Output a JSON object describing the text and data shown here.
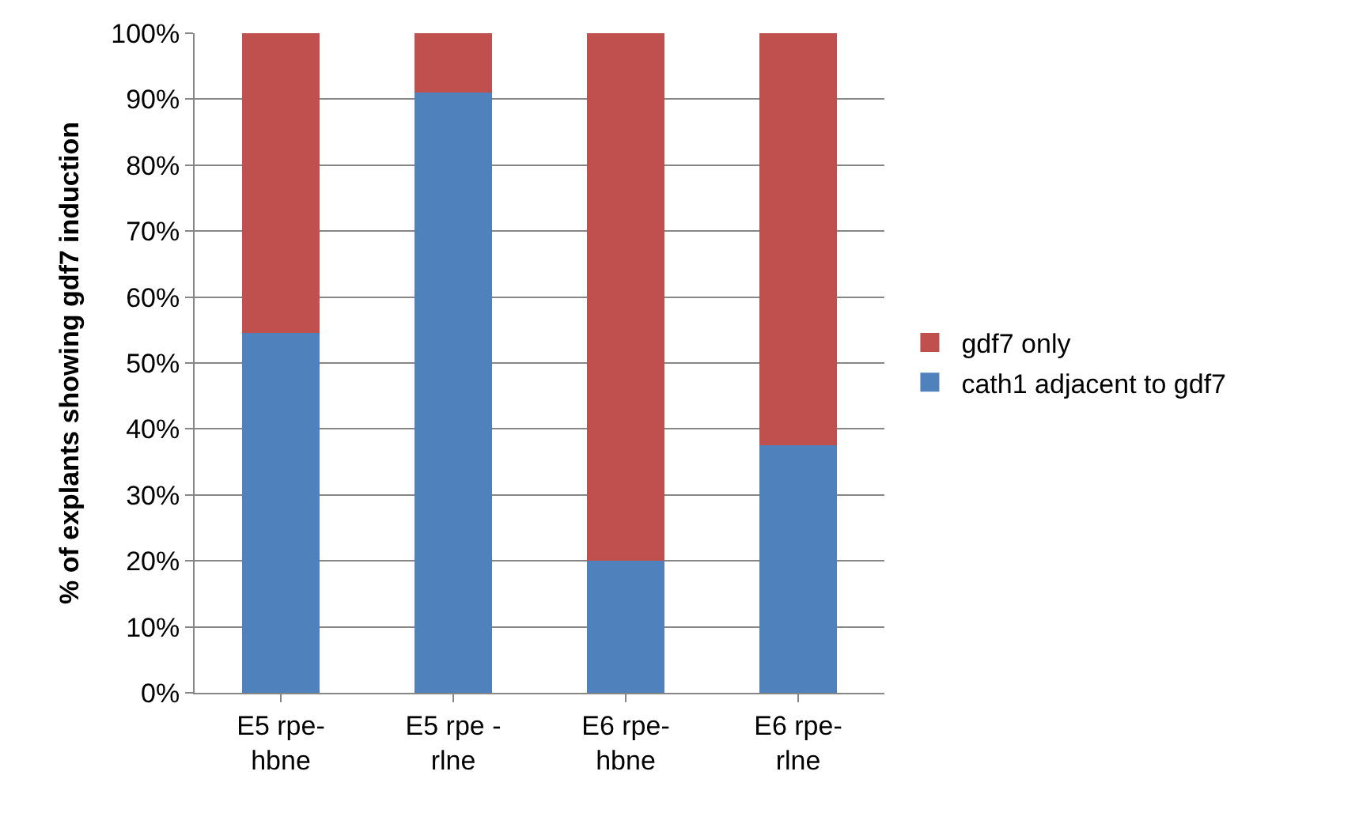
{
  "chart_data": {
    "type": "bar",
    "stacked": true,
    "ylabel": "% of explants showing gdf7 induction",
    "categories": [
      "E5 rpe-\nhbne",
      "E5 rpe -\nrlne",
      "E6 rpe-\nhbne",
      "E6 rpe-\nrlne"
    ],
    "series": [
      {
        "name": "cath1 adjacent to gdf7",
        "color": "#4f81bd",
        "values": [
          54.5,
          91,
          20,
          37.5
        ]
      },
      {
        "name": "gdf7 only",
        "color": "#c0504d",
        "values": [
          45.5,
          9,
          80,
          62.5
        ]
      }
    ],
    "ylim": [
      0,
      100
    ],
    "yticks": [
      {
        "value": 0,
        "label": "0%"
      },
      {
        "value": 10,
        "label": "10%"
      },
      {
        "value": 20,
        "label": "20%"
      },
      {
        "value": 30,
        "label": "30%"
      },
      {
        "value": 40,
        "label": "40%"
      },
      {
        "value": 50,
        "label": "50%"
      },
      {
        "value": 60,
        "label": "60%"
      },
      {
        "value": 70,
        "label": "70%"
      },
      {
        "value": 80,
        "label": "80%"
      },
      {
        "value": 90,
        "label": "90%"
      },
      {
        "value": 100,
        "label": "100%"
      }
    ],
    "grid": "y",
    "legend": "right"
  }
}
